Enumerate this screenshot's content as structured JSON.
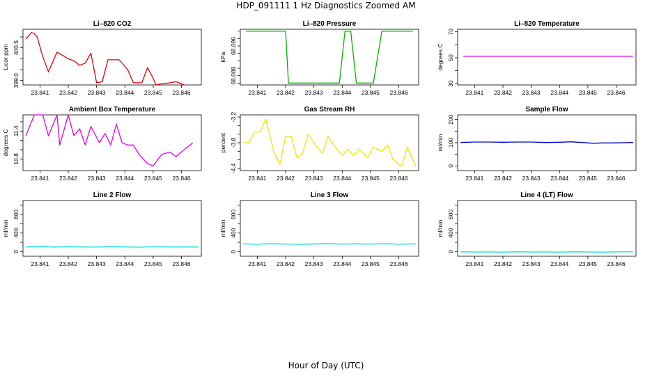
{
  "title": "HDP_091111  1 Hz Diagnostics Zoomed AM",
  "xlabel": "Hour of Day (UTC)",
  "chart_data": [
    {
      "type": "line",
      "title": "Li–820 CO2",
      "ylabel": "Licor ppm",
      "xlim": [
        23.8404,
        23.8467
      ],
      "ylim": [
        398.8,
        401.35
      ],
      "xticks": [
        "23.841",
        "23.842",
        "23.843",
        "23.844",
        "23.845",
        "23.846"
      ],
      "xtick_values": [
        23.841,
        23.842,
        23.843,
        23.844,
        23.845,
        23.846
      ],
      "yticks": [
        "399.0",
        "400.5"
      ],
      "ytick_values": [
        399.0,
        400.5
      ],
      "ytick_minor": [
        399.5,
        400.0,
        401.0
      ],
      "series": [
        {
          "color": "#e00000",
          "x": [
            23.8405,
            23.8407,
            23.8408,
            23.8409,
            23.8411,
            23.8413,
            23.8416,
            23.8418,
            23.842,
            23.8422,
            23.8424,
            23.8426,
            23.8428,
            23.843,
            23.8432,
            23.8434,
            23.8436,
            23.8438,
            23.8441,
            23.8443,
            23.8446,
            23.8448,
            23.845,
            23.8451,
            23.8453,
            23.8456,
            23.8458,
            23.8461
          ],
          "y": [
            400.9,
            401.2,
            401.15,
            401.0,
            400.1,
            399.4,
            400.3,
            400.15,
            400.0,
            399.9,
            399.7,
            399.8,
            400.25,
            398.9,
            398.95,
            399.95,
            399.95,
            399.95,
            399.5,
            398.9,
            398.9,
            399.6,
            399.1,
            398.8,
            398.85,
            398.9,
            398.95,
            398.8
          ]
        }
      ]
    },
    {
      "type": "line",
      "title": "Li–820 Pressure",
      "ylabel": "kPa",
      "xlim": [
        23.8404,
        23.8467
      ],
      "ylim": [
        68.0855,
        68.1005
      ],
      "xticks": [
        "23.841",
        "23.842",
        "23.843",
        "23.844",
        "23.845",
        "23.846"
      ],
      "xtick_values": [
        23.841,
        23.842,
        23.843,
        23.844,
        23.845,
        23.846
      ],
      "yticks": [
        "68.088",
        "68.096"
      ],
      "ytick_values": [
        68.088,
        68.096
      ],
      "ytick_minor": [
        68.086,
        68.09,
        68.092,
        68.094,
        68.098,
        68.1
      ],
      "series": [
        {
          "color": "#00b000",
          "x": [
            23.8406,
            23.8414,
            23.842,
            23.8421,
            23.8428,
            23.8435,
            23.8439,
            23.8441,
            23.8443,
            23.8445,
            23.8448,
            23.8451,
            23.8454,
            23.8459,
            23.8465
          ],
          "y": [
            68.1,
            68.1,
            68.1,
            68.086,
            68.086,
            68.086,
            68.086,
            68.1,
            68.1,
            68.086,
            68.086,
            68.086,
            68.1,
            68.1,
            68.1
          ]
        }
      ]
    },
    {
      "type": "line",
      "title": "Li–820 Temperature",
      "ylabel": "degrees C",
      "xlim": [
        23.8404,
        23.8467
      ],
      "ylim": [
        29,
        72
      ],
      "xticks": [
        "23.841",
        "23.842",
        "23.843",
        "23.844",
        "23.845",
        "23.846"
      ],
      "xtick_values": [
        23.841,
        23.842,
        23.843,
        23.844,
        23.845,
        23.846
      ],
      "yticks": [
        "30",
        "50",
        "70"
      ],
      "ytick_values": [
        30,
        50,
        70
      ],
      "ytick_minor": [
        40,
        60
      ],
      "series": [
        {
          "color": "#e000e0",
          "x": [
            23.8406,
            23.8466
          ],
          "y": [
            51.2,
            51.2
          ]
        }
      ]
    },
    {
      "type": "line",
      "title": "Ambient Box Temperature",
      "ylabel": "degrees C",
      "xlim": [
        23.8404,
        23.8467
      ],
      "ylim": [
        10.55,
        11.75
      ],
      "xticks": [
        "23.841",
        "23.842",
        "23.843",
        "23.844",
        "23.845",
        "23.846"
      ],
      "xtick_values": [
        23.841,
        23.842,
        23.843,
        23.844,
        23.845,
        23.846
      ],
      "yticks": [
        "10.8",
        "11.4"
      ],
      "ytick_values": [
        10.8,
        11.4
      ],
      "ytick_minor": [
        11.0,
        11.2,
        11.6
      ],
      "series": [
        {
          "color": "#e000e0",
          "x": [
            23.8405,
            23.8408,
            23.8411,
            23.8413,
            23.8416,
            23.8417,
            23.842,
            23.8422,
            23.8424,
            23.8426,
            23.8428,
            23.8431,
            23.8433,
            23.8435,
            23.8437,
            23.8439,
            23.8441,
            23.8443,
            23.8445,
            23.8448,
            23.845,
            23.8453,
            23.8456,
            23.8458,
            23.8461,
            23.8464
          ],
          "y": [
            11.3,
            11.75,
            11.75,
            11.3,
            11.75,
            11.1,
            11.75,
            11.3,
            11.45,
            11.1,
            11.5,
            11.15,
            11.35,
            11.1,
            11.55,
            11.15,
            11.1,
            11.1,
            10.9,
            10.7,
            10.65,
            10.9,
            10.95,
            10.85,
            11.0,
            11.15
          ]
        }
      ]
    },
    {
      "type": "line",
      "title": "Gas Stream RH",
      "ylabel": "percent",
      "xlim": [
        23.8404,
        23.8467
      ],
      "ylim": [
        -4.45,
        -3.15
      ],
      "xticks": [
        "23.841",
        "23.842",
        "23.843",
        "23.844",
        "23.845",
        "23.846"
      ],
      "xtick_values": [
        23.841,
        23.842,
        23.843,
        23.844,
        23.845,
        23.846
      ],
      "yticks": [
        "-4.4",
        "-3.8",
        "-3.2"
      ],
      "ytick_values": [
        -4.4,
        -3.8,
        -3.2
      ],
      "ytick_minor": [
        -4.2,
        -4.0,
        -3.6,
        -3.4
      ],
      "series": [
        {
          "color": "#e8e800",
          "x": [
            23.8405,
            23.8407,
            23.8409,
            23.8411,
            23.8413,
            23.8416,
            23.8418,
            23.842,
            23.8422,
            23.8424,
            23.8426,
            23.8428,
            23.843,
            23.8433,
            23.8435,
            23.8437,
            23.844,
            23.8442,
            23.8444,
            23.8446,
            23.8449,
            23.8451,
            23.8454,
            23.8456,
            23.8458,
            23.8461,
            23.8463,
            23.8466
          ],
          "y": [
            -3.8,
            -3.8,
            -3.55,
            -3.55,
            -3.25,
            -4.05,
            -4.3,
            -3.65,
            -3.65,
            -4.15,
            -4.05,
            -3.6,
            -3.8,
            -4.05,
            -3.65,
            -3.85,
            -4.1,
            -3.95,
            -4.1,
            -3.95,
            -4.15,
            -3.9,
            -4.0,
            -3.85,
            -4.2,
            -4.35,
            -3.9,
            -4.35
          ]
        }
      ]
    },
    {
      "type": "line",
      "title": "Sample Flow",
      "ylabel": "ml/min",
      "xlim": [
        23.8404,
        23.8467
      ],
      "ylim": [
        -20,
        220
      ],
      "xticks": [
        "23.841",
        "23.842",
        "23.843",
        "23.844",
        "23.845",
        "23.846"
      ],
      "xtick_values": [
        23.841,
        23.842,
        23.843,
        23.844,
        23.845,
        23.846
      ],
      "yticks": [
        "0",
        "100",
        "200"
      ],
      "ytick_values": [
        0,
        100,
        200
      ],
      "ytick_minor": [
        50,
        150
      ],
      "series": [
        {
          "color": "#0000cc",
          "x": [
            23.8405,
            23.841,
            23.8415,
            23.842,
            23.8425,
            23.843,
            23.8435,
            23.844,
            23.8444,
            23.8448,
            23.8452,
            23.8455,
            23.8458,
            23.8462,
            23.8466
          ],
          "y": [
            101,
            103,
            103,
            102,
            103,
            103,
            101,
            102,
            104,
            101,
            98,
            99,
            99,
            100,
            101
          ]
        }
      ]
    },
    {
      "type": "line",
      "title": "Line 2 Flow",
      "ylabel": "ml/min",
      "xlim": [
        23.8404,
        23.8467
      ],
      "ylim": [
        -100,
        1100
      ],
      "xticks": [
        "23.841",
        "23.842",
        "23.843",
        "23.844",
        "23.845",
        "23.846"
      ],
      "xtick_values": [
        23.841,
        23.842,
        23.843,
        23.844,
        23.845,
        23.846
      ],
      "yticks": [
        "0",
        "400",
        "800"
      ],
      "ytick_values": [
        0,
        400,
        800
      ],
      "ytick_minor": [
        200,
        600,
        1000
      ],
      "series": [
        {
          "color": "#00dddd",
          "x": [
            23.8405,
            23.841,
            23.8415,
            23.842,
            23.8425,
            23.843,
            23.8435,
            23.844,
            23.8445,
            23.845,
            23.8455,
            23.846,
            23.8466
          ],
          "y": [
            100,
            108,
            98,
            104,
            100,
            97,
            106,
            100,
            95,
            104,
            100,
            99,
            96
          ]
        }
      ]
    },
    {
      "type": "line",
      "title": "Line 3 Flow",
      "ylabel": "ml/min",
      "xlim": [
        23.8404,
        23.8467
      ],
      "ylim": [
        -100,
        1100
      ],
      "xticks": [
        "23.841",
        "23.842",
        "23.843",
        "23.844",
        "23.845",
        "23.846"
      ],
      "xtick_values": [
        23.841,
        23.842,
        23.843,
        23.844,
        23.845,
        23.846
      ],
      "yticks": [
        "0",
        "400",
        "800"
      ],
      "ytick_values": [
        0,
        400,
        800
      ],
      "ytick_minor": [
        200,
        600,
        1000
      ],
      "series": [
        {
          "color": "#00dddd",
          "x": [
            23.8405,
            23.841,
            23.8415,
            23.842,
            23.8425,
            23.843,
            23.8435,
            23.844,
            23.8445,
            23.845,
            23.8455,
            23.846,
            23.8466
          ],
          "y": [
            168,
            160,
            170,
            164,
            158,
            166,
            171,
            162,
            168,
            163,
            170,
            161,
            167
          ]
        }
      ]
    },
    {
      "type": "line",
      "title": "Line 4 (LT) Flow",
      "ylabel": "ml/min",
      "xlim": [
        23.8404,
        23.8467
      ],
      "ylim": [
        -100,
        1100
      ],
      "xticks": [
        "23.841",
        "23.842",
        "23.843",
        "23.844",
        "23.845",
        "23.846"
      ],
      "xtick_values": [
        23.841,
        23.842,
        23.843,
        23.844,
        23.845,
        23.846
      ],
      "yticks": [
        "0",
        "400",
        "800"
      ],
      "ytick_values": [
        0,
        400,
        800
      ],
      "ytick_minor": [
        200,
        600,
        1000
      ],
      "series": [
        {
          "color": "#00dddd",
          "x": [
            23.8405,
            23.841,
            23.8415,
            23.842,
            23.8425,
            23.843,
            23.8435,
            23.844,
            23.8445,
            23.845,
            23.8455,
            23.846,
            23.8466
          ],
          "y": [
            -5,
            -10,
            -8,
            -12,
            -6,
            -10,
            -9,
            -12,
            -5,
            -8,
            -11,
            -7,
            -6
          ]
        }
      ]
    }
  ]
}
